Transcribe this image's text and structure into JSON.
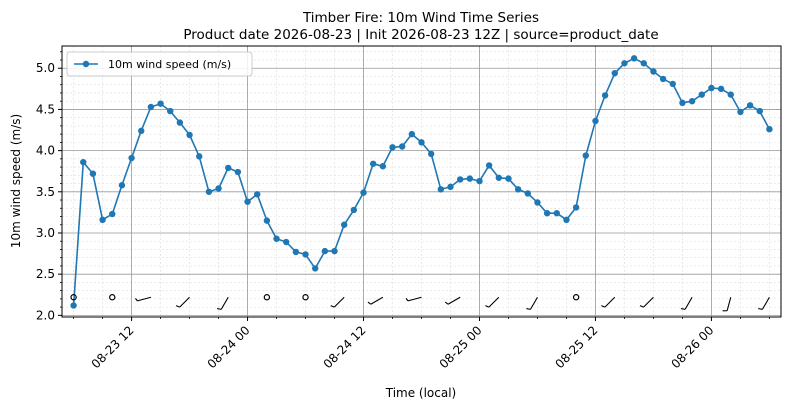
{
  "chart_data": {
    "type": "line",
    "title": "Timber Fire: 10m Wind Time Series",
    "subtitle": "Product date 2026-08-23 | Init 2026-08-23 12Z | source=product_date",
    "xlabel": "Time (local)",
    "ylabel": "10m wind speed (m/s)",
    "ylim": [
      1.98,
      5.27
    ],
    "xlim_hours": [
      -7.2,
      67.2
    ],
    "yticks": [
      "2.0",
      "2.5",
      "3.0",
      "3.5",
      "4.0",
      "4.5",
      "5.0"
    ],
    "xticks": [
      "08-23 12",
      "08-24 00",
      "08-24 12",
      "08-25 00",
      "08-25 12",
      "08-26 00"
    ],
    "grid": true,
    "legend_position": "upper-left",
    "series": [
      {
        "name": "10m wind speed (m/s)",
        "color": "#1f77b4",
        "x_hours": [
          -6,
          -5,
          -4,
          -3,
          -2,
          -1,
          0,
          1,
          2,
          3,
          4,
          5,
          6,
          7,
          8,
          9,
          10,
          11,
          12,
          13,
          14,
          15,
          16,
          17,
          18,
          19,
          20,
          21,
          22,
          23,
          24,
          25,
          26,
          27,
          28,
          29,
          30,
          31,
          32,
          33,
          34,
          35,
          36,
          37,
          38,
          39,
          40,
          41,
          42,
          43,
          44,
          45,
          46,
          47,
          48,
          49,
          50,
          51,
          52,
          53,
          54,
          55,
          56,
          57,
          58,
          59,
          60,
          61,
          62,
          63,
          64,
          65,
          66
        ],
        "values": [
          2.12,
          3.86,
          3.72,
          3.16,
          3.23,
          3.58,
          3.91,
          4.24,
          4.53,
          4.57,
          4.48,
          4.34,
          4.19,
          3.93,
          3.5,
          3.54,
          3.79,
          3.74,
          3.38,
          3.47,
          3.15,
          2.93,
          2.89,
          2.77,
          2.74,
          2.57,
          2.78,
          2.78,
          3.1,
          3.28,
          3.49,
          3.84,
          3.81,
          4.04,
          4.05,
          4.2,
          4.1,
          3.96,
          3.53,
          3.56,
          3.65,
          3.66,
          3.63,
          3.82,
          3.67,
          3.66,
          3.53,
          3.48,
          3.37,
          3.24,
          3.24,
          3.16,
          3.31,
          3.94,
          4.36,
          4.67,
          4.94,
          5.06,
          5.12,
          5.06,
          4.96,
          4.87,
          4.81,
          4.58,
          4.6,
          4.68,
          4.76,
          4.75,
          4.68,
          4.47,
          4.55,
          4.48,
          4.26
        ]
      }
    ],
    "wind_barbs": {
      "baseline_value": 2.22,
      "x_hours": [
        -6,
        -2,
        2,
        6,
        10,
        14,
        18,
        22,
        26,
        30,
        34,
        38,
        42,
        46,
        50,
        54,
        58,
        62,
        66
      ],
      "direction_deg": [
        0,
        0,
        255,
        225,
        210,
        0,
        0,
        225,
        240,
        255,
        240,
        225,
        210,
        0,
        225,
        225,
        210,
        195,
        210
      ],
      "calm": [
        true,
        true,
        false,
        false,
        false,
        true,
        true,
        false,
        false,
        false,
        false,
        false,
        false,
        true,
        false,
        false,
        false,
        false,
        false
      ]
    }
  }
}
